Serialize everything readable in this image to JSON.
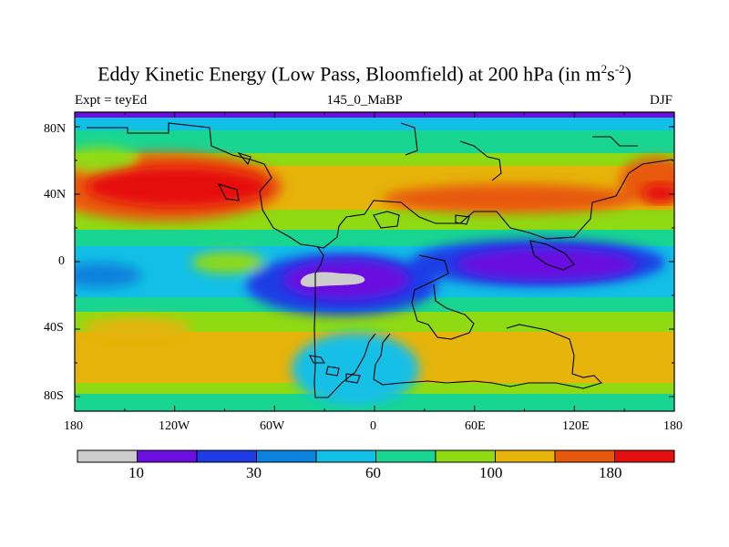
{
  "title": {
    "main": "Eddy Kinetic Energy (Low Pass, Bloomfield) at 200 hPa (in m",
    "sup1": "2",
    "mid": "s",
    "sup2": "-2",
    "end": ")"
  },
  "subtitle_left": "Expt = teyEd",
  "subtitle_center": "145_0_MaBP",
  "subtitle_right": "DJF",
  "lat_labels": [
    "80N",
    "40N",
    "0",
    "40S",
    "80S"
  ],
  "lon_labels": [
    "180",
    "120W",
    "60W",
    "0",
    "60E",
    "120E",
    "180"
  ],
  "colorbar": {
    "colors": [
      "#cccccc",
      "#6a0fe0",
      "#1e3ce6",
      "#0b82dc",
      "#12bfe6",
      "#18d692",
      "#8fda12",
      "#e6b40a",
      "#e8580c",
      "#e60f0f"
    ],
    "labels": [
      "10",
      "30",
      "60",
      "100",
      "180"
    ]
  }
}
